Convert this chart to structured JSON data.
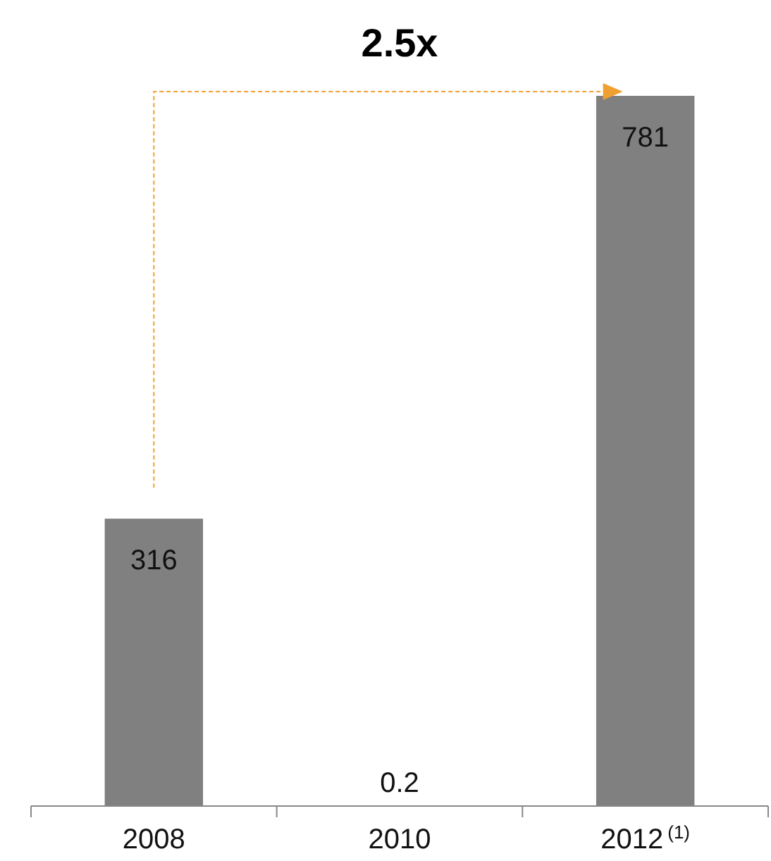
{
  "chart_data": {
    "type": "bar",
    "categories": [
      "2008",
      "2010",
      "2012$^{(1)}$"
    ],
    "values": [
      316,
      0.2,
      781
    ],
    "color": "#808080",
    "data_labels": true,
    "annotations": [
      "2.5x"
    ]
  }
}
